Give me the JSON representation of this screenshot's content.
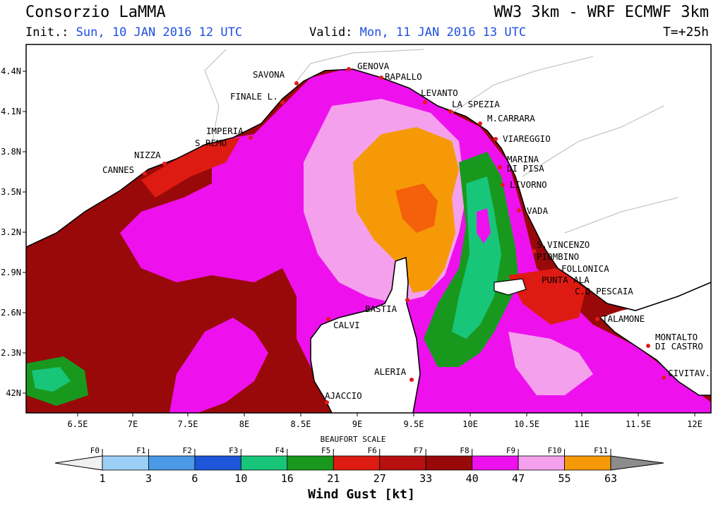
{
  "header": {
    "org": "Consorzio LaMMA",
    "model": "WW3 3km - WRF ECMWF 3km",
    "init_label": "Init.:",
    "init_value": "Sun, 10 JAN 2016   12 UTC",
    "valid_label": "Valid:",
    "valid_value": "Mon, 11 JAN 2016   13 UTC",
    "step": "T=+25h"
  },
  "axes": {
    "lon_labels": [
      "6.5E",
      "7E",
      "7.5E",
      "8E",
      "8.5E",
      "9E",
      "9.5E",
      "10E",
      "10.5E",
      "11E",
      "11.5E",
      "12E"
    ],
    "lat_labels": [
      "4.4N",
      "4.1N",
      "3.8N",
      "3.5N",
      "3.2N",
      "2.9N",
      "2.6N",
      "2.3N",
      "42N"
    ]
  },
  "cities": [
    {
      "name": "GENOVA"
    },
    {
      "name": "SAVONA"
    },
    {
      "name": "RAPALLO"
    },
    {
      "name": "LEVANTO"
    },
    {
      "name": "LA SPEZIA"
    },
    {
      "name": "FINALE L."
    },
    {
      "name": "M.CARRARA"
    },
    {
      "name": "IMPERIA"
    },
    {
      "name": "S.REMO"
    },
    {
      "name": "VIAREGGIO"
    },
    {
      "name": "NIZZA"
    },
    {
      "name": "MARINA"
    },
    {
      "name": "DI PISA"
    },
    {
      "name": "CANNES"
    },
    {
      "name": "LIVORNO"
    },
    {
      "name": "VADA"
    },
    {
      "name": "S.VINCENZO"
    },
    {
      "name": "PIOMBINO"
    },
    {
      "name": "FOLLONICA"
    },
    {
      "name": "PUNTA ALA"
    },
    {
      "name": "C.D.PESCAIA"
    },
    {
      "name": "BASTIA"
    },
    {
      "name": "CALVI"
    },
    {
      "name": "TALAMONE"
    },
    {
      "name": "MONTALTO"
    },
    {
      "name": "DI CASTRO"
    },
    {
      "name": "ALERIA"
    },
    {
      "name": "CIVITAV."
    },
    {
      "name": "AJACCIO"
    }
  ],
  "legend": {
    "scale_title": "BEAUFORT SCALE",
    "unit_title": "Wind Gust [kt]",
    "beaufort": [
      "F0",
      "F1",
      "F2",
      "F3",
      "F4",
      "F5",
      "F6",
      "F7",
      "F8",
      "F9",
      "F10",
      "F11"
    ],
    "thresholds": [
      "1",
      "3",
      "6",
      "10",
      "16",
      "21",
      "27",
      "33",
      "40",
      "47",
      "55",
      "63"
    ],
    "colors": [
      "#9ccff5",
      "#4a9ae8",
      "#1f55d8",
      "#18c67a",
      "#18991e",
      "#de1b12",
      "#b81010",
      "#9a0909",
      "#ee11ee",
      "#f5a0ec",
      "#f59a06",
      "#f5600a"
    ],
    "open_ends": [
      "#f0f0f0",
      "#8c8c8c"
    ]
  }
}
